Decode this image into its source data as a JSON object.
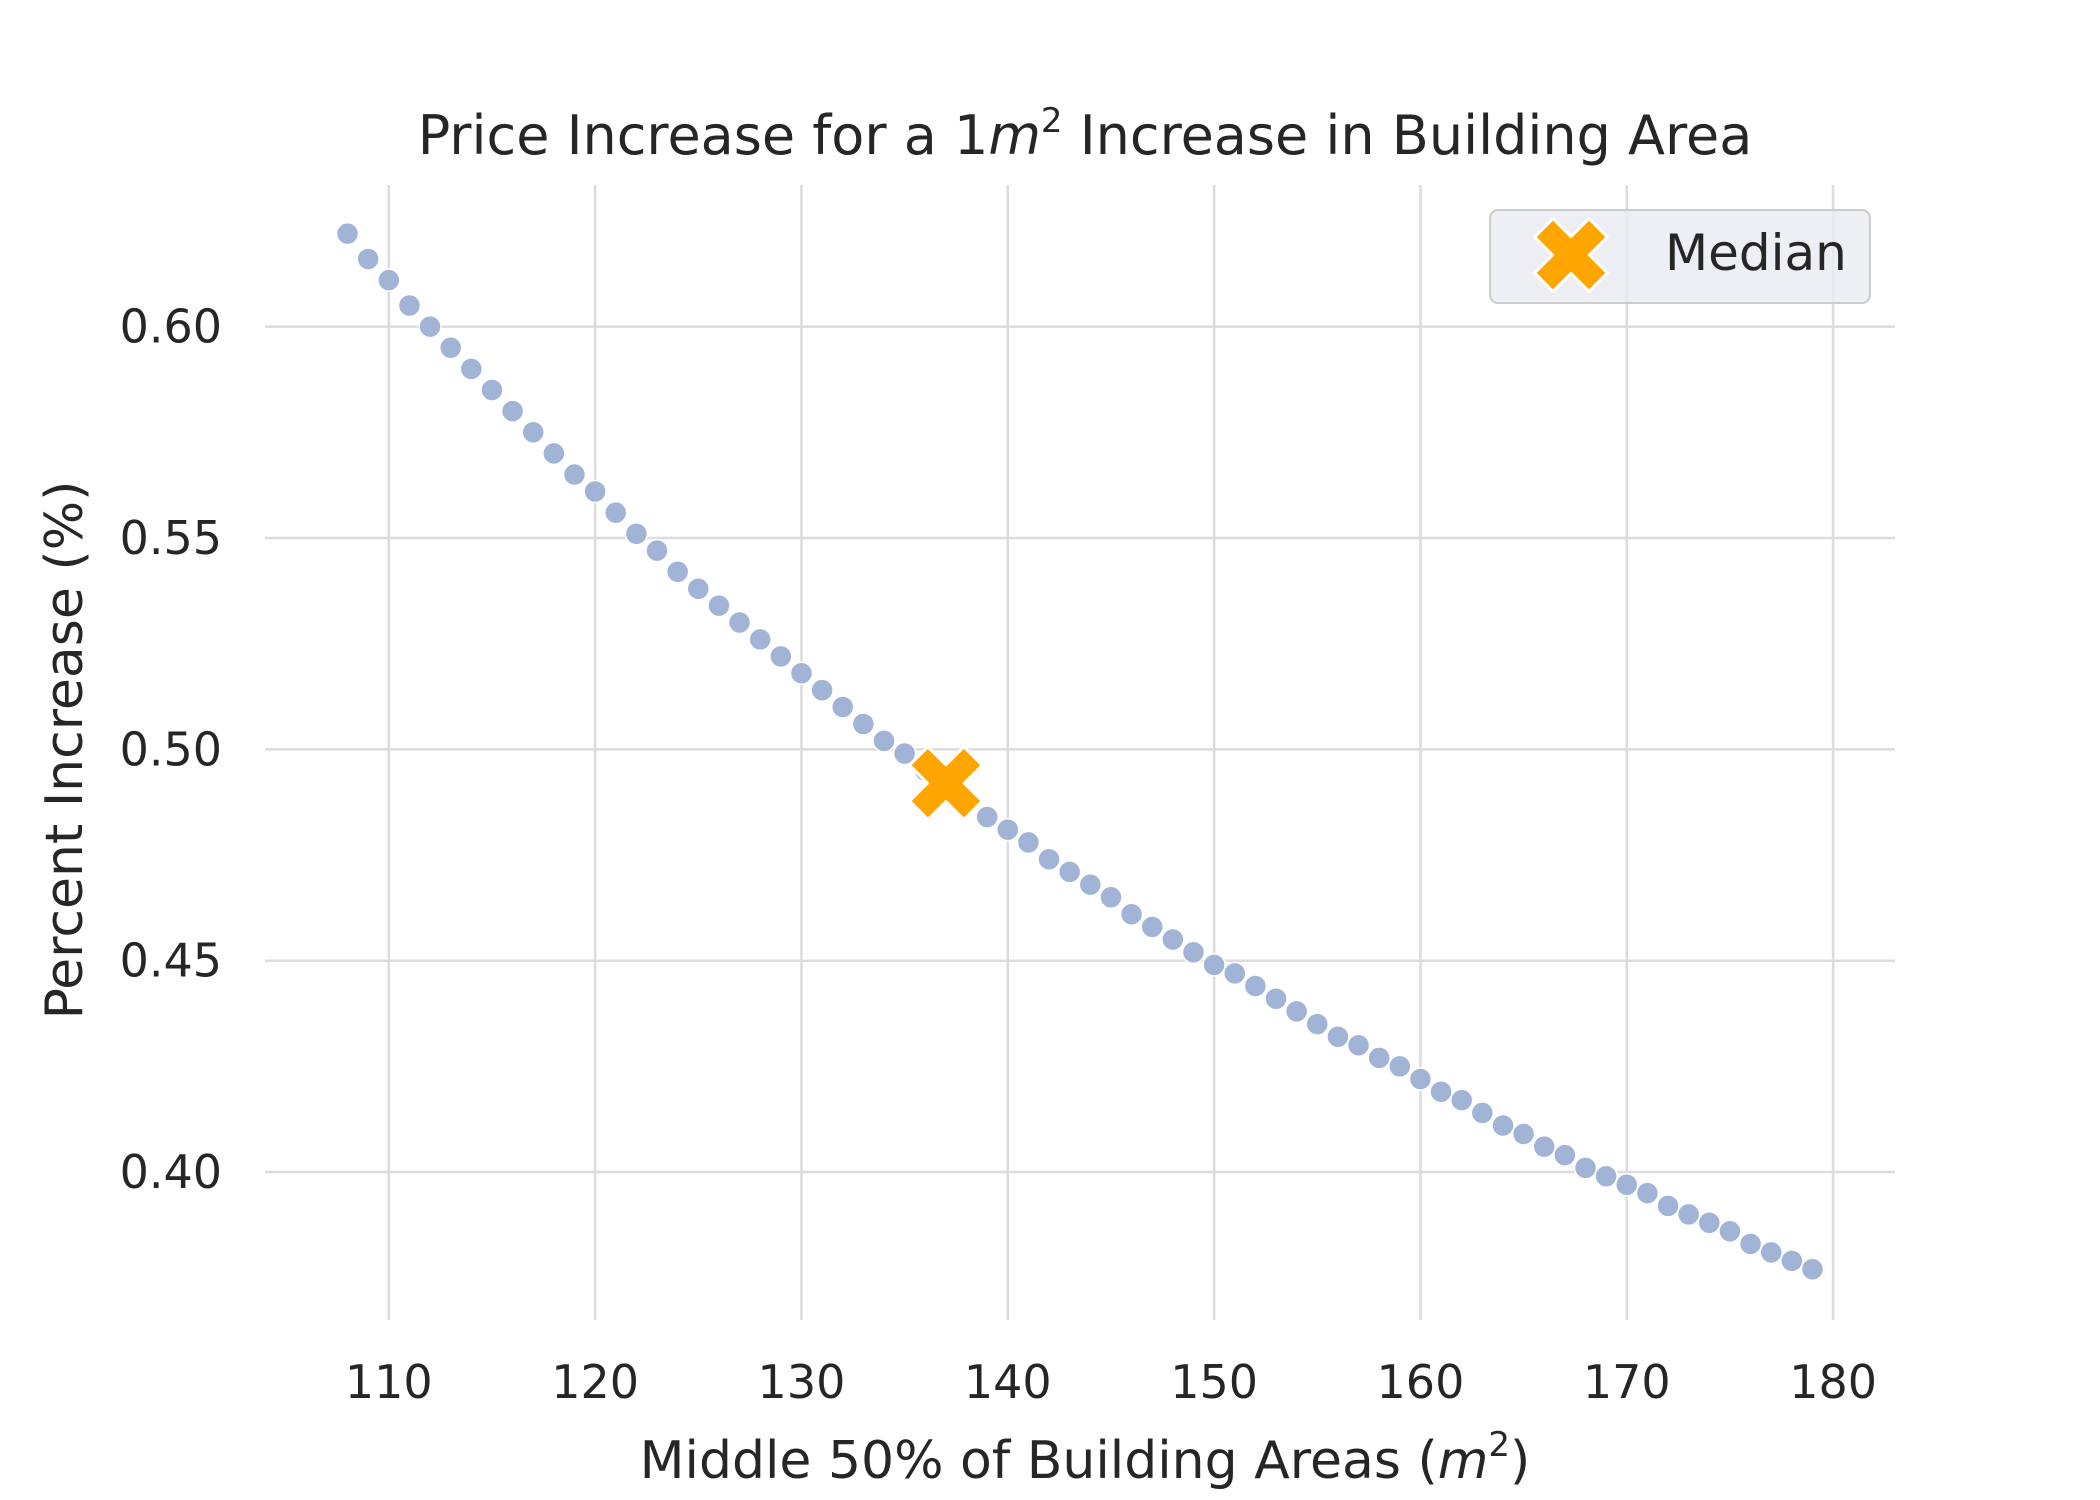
{
  "chart_data": {
    "type": "scatter",
    "title": "Price Increase for a 1m² Increase in Building Area",
    "xlabel": "Middle 50% of Building Areas (m²)",
    "ylabel": "Percent Increase (%)",
    "xlim": [
      104,
      183
    ],
    "ylim": [
      0.365,
      0.6335
    ],
    "x_ticks": [
      110,
      120,
      130,
      140,
      150,
      160,
      170,
      180
    ],
    "y_ticks": [
      0.4,
      0.45,
      0.5,
      0.55,
      0.6
    ],
    "x_tick_labels": [
      "110",
      "120",
      "130",
      "140",
      "150",
      "160",
      "170",
      "180"
    ],
    "y_tick_labels": [
      "0.40",
      "0.45",
      "0.50",
      "0.55",
      "0.60"
    ],
    "grid": true,
    "legend_position": "top-right",
    "series": [
      {
        "marker": "circle",
        "color": "#9db0d4",
        "x": [
          108,
          109,
          110,
          111,
          112,
          113,
          114,
          115,
          116,
          117,
          118,
          119,
          120,
          121,
          122,
          123,
          124,
          125,
          126,
          127,
          128,
          129,
          130,
          131,
          132,
          133,
          134,
          135,
          136,
          137,
          138,
          139,
          140,
          141,
          142,
          143,
          144,
          145,
          146,
          147,
          148,
          149,
          150,
          151,
          152,
          153,
          154,
          155,
          156,
          157,
          158,
          159,
          160,
          161,
          162,
          163,
          164,
          165,
          166,
          167,
          168,
          169,
          170,
          171,
          172,
          173,
          174,
          175,
          176,
          177,
          178,
          179
        ],
        "y": [
          0.622,
          0.616,
          0.611,
          0.605,
          0.6,
          0.595,
          0.59,
          0.585,
          0.58,
          0.575,
          0.57,
          0.565,
          0.561,
          0.556,
          0.551,
          0.547,
          0.542,
          0.538,
          0.534,
          0.53,
          0.526,
          0.522,
          0.518,
          0.514,
          0.51,
          0.506,
          0.502,
          0.499,
          0.495,
          0.491,
          0.488,
          0.484,
          0.481,
          0.478,
          0.474,
          0.471,
          0.468,
          0.465,
          0.461,
          0.458,
          0.455,
          0.452,
          0.449,
          0.447,
          0.444,
          0.441,
          0.438,
          0.435,
          0.432,
          0.43,
          0.427,
          0.425,
          0.422,
          0.419,
          0.417,
          0.414,
          0.411,
          0.409,
          0.406,
          0.404,
          0.401,
          0.399,
          0.397,
          0.395,
          0.392,
          0.39,
          0.388,
          0.386,
          0.383,
          0.381,
          0.379,
          0.377
        ]
      }
    ],
    "median_point": {
      "name": "Median",
      "x": 137,
      "y": 0.492,
      "marker": "X",
      "color": "#ffa500"
    },
    "legend": [
      {
        "label": "Median",
        "marker": "X",
        "color": "#ffa500"
      }
    ]
  }
}
